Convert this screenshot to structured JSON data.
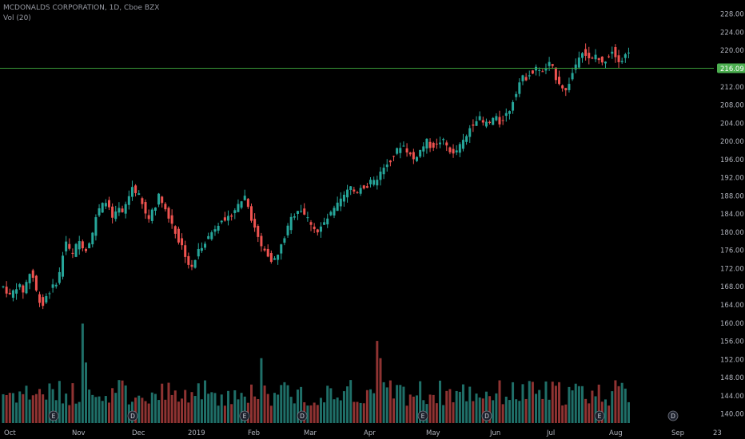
{
  "header": {
    "title": "MCDONALDS CORPORATION, 1D, Cboe BZX",
    "volume_label": "Vol (20)"
  },
  "colors": {
    "background": "#000000",
    "up": "#26a69a",
    "down": "#ef5350",
    "volume_up": "#1f6f68",
    "volume_down": "#8f3332",
    "price_line": "#3a9a3a",
    "price_tag": "#4caf50",
    "event_marker_bg": "#1e222d",
    "axis_text": "#b2b5be"
  },
  "chart_data": {
    "type": "candlestick",
    "y_axis": {
      "min": 138,
      "max": 229,
      "ticks": [
        140,
        144,
        148,
        152,
        156,
        160,
        164,
        168,
        172,
        176,
        180,
        184,
        188,
        192,
        196,
        200,
        204,
        208,
        212,
        216,
        220,
        224,
        228
      ],
      "tick_labels": [
        "140.00",
        "144.00",
        "148.00",
        "152.00",
        "156.00",
        "160.00",
        "164.00",
        "168.00",
        "172.00",
        "176.00",
        "180.00",
        "184.00",
        "188.00",
        "192.00",
        "196.00",
        "200.00",
        "204.00",
        "208.00",
        "212.00",
        "216.00",
        "220.00",
        "224.00",
        "228.00"
      ]
    },
    "x_axis": {
      "labels": [
        "Oct",
        "Nov",
        "Dec",
        "2019",
        "Feb",
        "Mar",
        "Apr",
        "May",
        "Jun",
        "Jul",
        "Aug",
        "Sep",
        "23"
      ]
    },
    "price_line": {
      "value": 216.09,
      "label": "216.09"
    },
    "event_markers": [
      "E",
      "D",
      "E",
      "D",
      "E",
      "D",
      "E",
      "D"
    ],
    "close_series": [
      168,
      167,
      166,
      167,
      168,
      168,
      167,
      169,
      171,
      170,
      167,
      165,
      164,
      166,
      167,
      168,
      169,
      171,
      175,
      178,
      176,
      175,
      177,
      178,
      177,
      176,
      178,
      180,
      183,
      185,
      186,
      187,
      185,
      183,
      184,
      185,
      184,
      186,
      188,
      190,
      189,
      188,
      186,
      184,
      183,
      185,
      186,
      188,
      187,
      185,
      183,
      182,
      180,
      178,
      177,
      175,
      173,
      172,
      174,
      176,
      177,
      178,
      179,
      180,
      181,
      182,
      183,
      182,
      183,
      184,
      185,
      186,
      187,
      188,
      186,
      183,
      181,
      179,
      177,
      176,
      175,
      174,
      174,
      175,
      177,
      179,
      181,
      183,
      184,
      185,
      185,
      184,
      183,
      182,
      181,
      180,
      181,
      182,
      183,
      184,
      185,
      186,
      187,
      188,
      189,
      190,
      189,
      189,
      190,
      190,
      190,
      191,
      191,
      192,
      193,
      194,
      195,
      196,
      197,
      198,
      199,
      199,
      198,
      197,
      196,
      197,
      198,
      199,
      200,
      199,
      199,
      199,
      200,
      200,
      199,
      198,
      197,
      198,
      199,
      200,
      201,
      203,
      204,
      205,
      205,
      204,
      204,
      204,
      205,
      205,
      204,
      205,
      206,
      207,
      209,
      211,
      213,
      214,
      214,
      215,
      215,
      216,
      216,
      215,
      216,
      217,
      216,
      214,
      213,
      212,
      211,
      213,
      215,
      217,
      219,
      220,
      219,
      218,
      218,
      219,
      218,
      217,
      218,
      219,
      220,
      219,
      218,
      218,
      219,
      220
    ],
    "volume": {
      "max": 162,
      "peaks": [
        {
          "index": 24,
          "value": 161,
          "direction": "up"
        },
        {
          "index": 25,
          "value": 152,
          "direction": "up"
        },
        {
          "index": 78,
          "value": 153,
          "direction": "up"
        },
        {
          "index": 113,
          "value": 157,
          "direction": "down"
        },
        {
          "index": 114,
          "value": 153,
          "direction": "down"
        }
      ]
    }
  }
}
